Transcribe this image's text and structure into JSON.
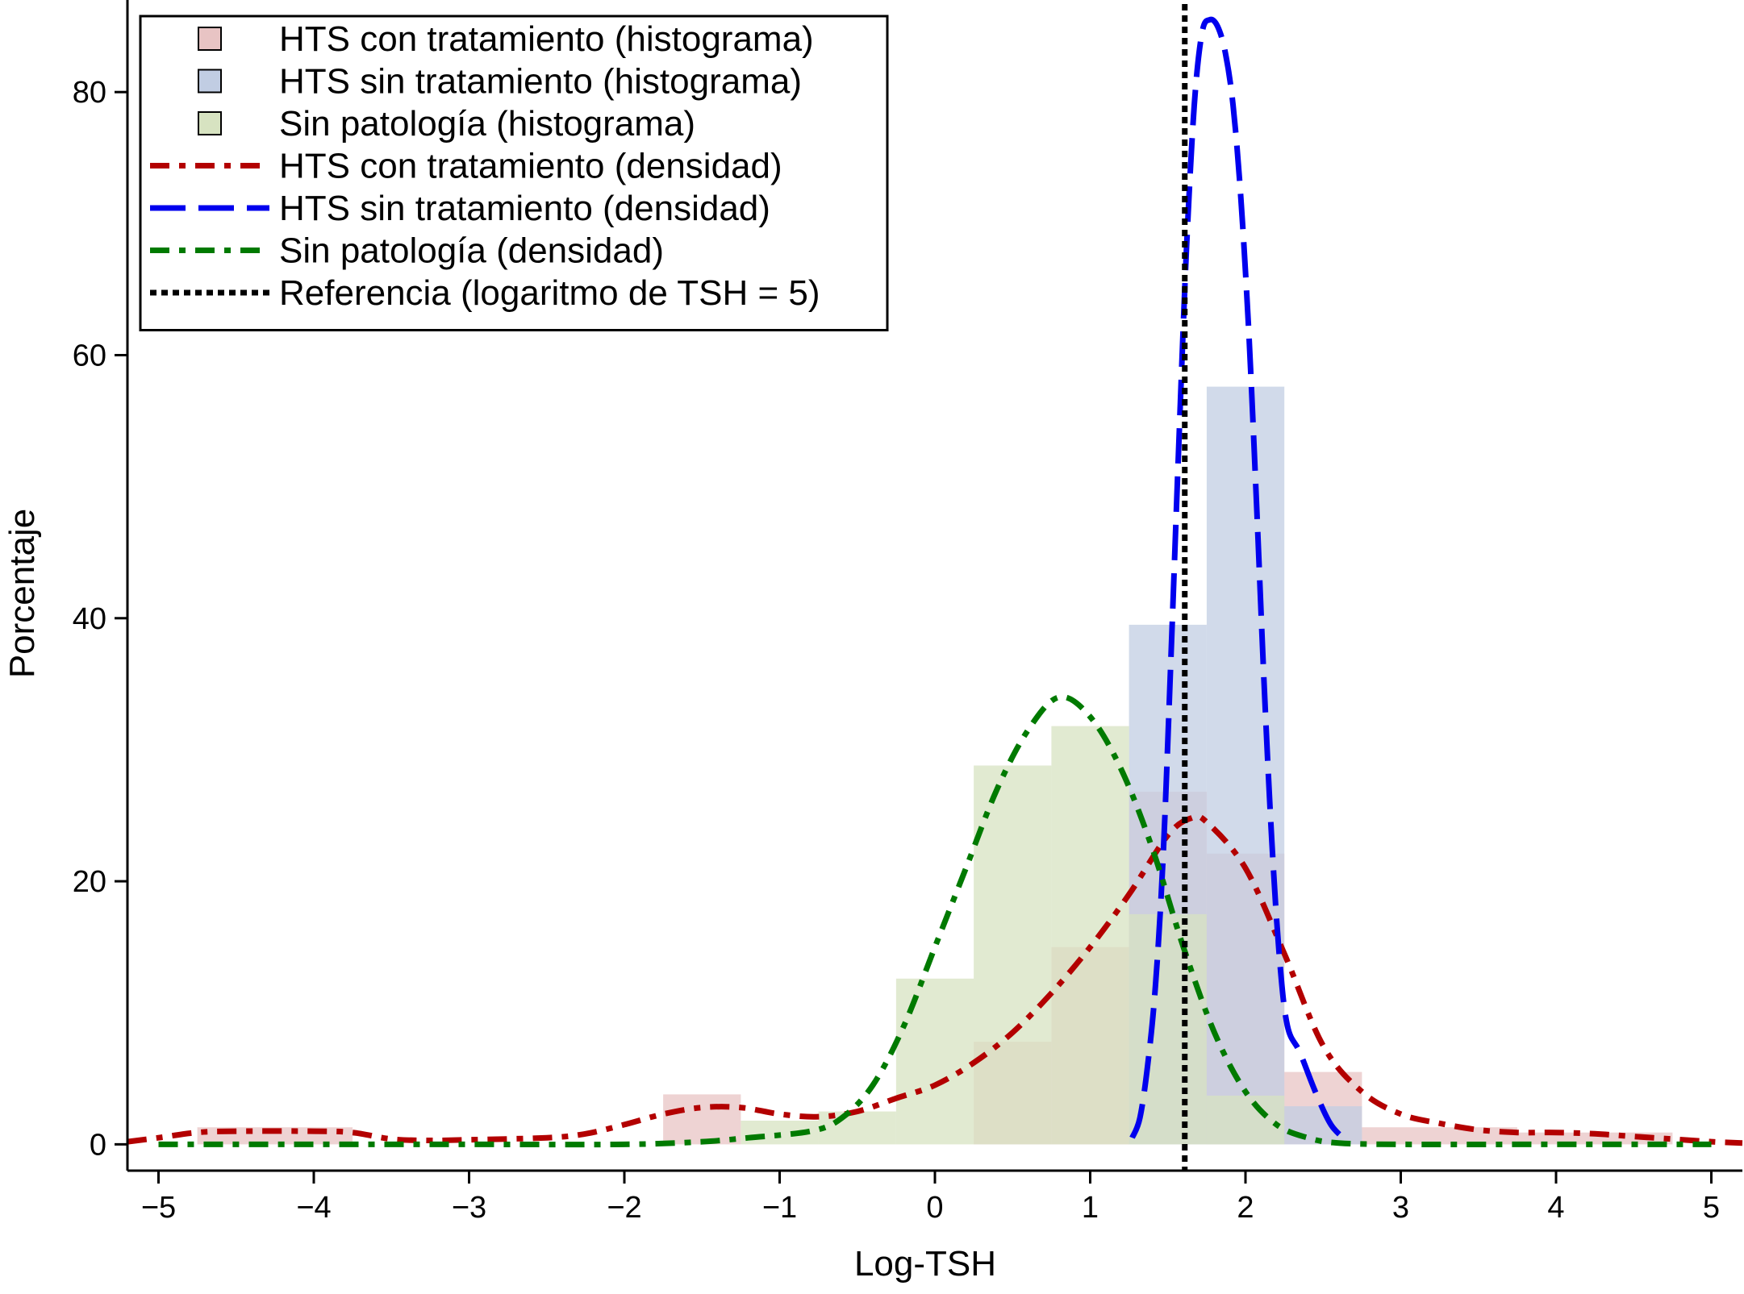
{
  "chart_data": {
    "type": "histogram",
    "title": "",
    "xlabel": "Log-TSH",
    "ylabel": "Porcentaje",
    "xlim": [
      -5.2,
      5.2
    ],
    "ylim": [
      -2,
      87
    ],
    "x_ticks": [
      -5,
      -4,
      -3,
      -2,
      -1,
      0,
      1,
      2,
      3,
      4,
      5
    ],
    "x_tick_labels": [
      "−5",
      "−4",
      "−3",
      "−2",
      "−1",
      "0",
      "1",
      "2",
      "3",
      "4",
      "5"
    ],
    "y_ticks": [
      0,
      20,
      40,
      60,
      80
    ],
    "y_tick_labels": [
      "0",
      "20",
      "40",
      "60",
      "80"
    ],
    "grid": false,
    "legend_position": "top-left",
    "reference_line": {
      "name": "Referencia (logaritmo de TSH = 5)",
      "x": 1.609,
      "color": "#000000",
      "dash": "dotted"
    },
    "histograms": [
      {
        "name": "HTS con tratamiento (histograma)",
        "color": "#e8c4c4",
        "bins": [
          {
            "x0": -4.75,
            "x1": -3.75,
            "y": 1.3
          },
          {
            "x0": -1.75,
            "x1": -1.25,
            "y": 3.8
          },
          {
            "x0": 0.25,
            "x1": 0.75,
            "y": 7.8
          },
          {
            "x0": 0.75,
            "x1": 1.25,
            "y": 15.0
          },
          {
            "x0": 1.25,
            "x1": 1.75,
            "y": 26.8
          },
          {
            "x0": 1.75,
            "x1": 2.25,
            "y": 22.1
          },
          {
            "x0": 2.25,
            "x1": 2.75,
            "y": 5.5
          },
          {
            "x0": 2.75,
            "x1": 3.75,
            "y": 1.3
          },
          {
            "x0": 3.75,
            "x1": 4.75,
            "y": 0.9
          }
        ]
      },
      {
        "name": "HTS sin tratamiento (histograma)",
        "color": "#c1cde3",
        "bins": [
          {
            "x0": 1.25,
            "x1": 1.75,
            "y": 39.5
          },
          {
            "x0": 1.75,
            "x1": 2.25,
            "y": 57.6
          },
          {
            "x0": 2.25,
            "x1": 2.75,
            "y": 2.9
          }
        ]
      },
      {
        "name": "Sin patología (histograma)",
        "color": "#d7e3c1",
        "bins": [
          {
            "x0": -1.25,
            "x1": -0.75,
            "y": 1.8
          },
          {
            "x0": -0.75,
            "x1": -0.25,
            "y": 2.5
          },
          {
            "x0": -0.25,
            "x1": 0.25,
            "y": 12.6
          },
          {
            "x0": 0.25,
            "x1": 0.75,
            "y": 28.8
          },
          {
            "x0": 0.75,
            "x1": 1.25,
            "y": 31.8
          },
          {
            "x0": 1.25,
            "x1": 1.75,
            "y": 17.5
          },
          {
            "x0": 1.75,
            "x1": 2.25,
            "y": 3.7
          }
        ]
      }
    ],
    "densities": [
      {
        "name": "HTS con tratamiento (densidad)",
        "color": "#b30000",
        "dash": "dash-dot",
        "points": [
          [
            -5.2,
            0.2
          ],
          [
            -5,
            0.5
          ],
          [
            -4.75,
            0.9
          ],
          [
            -4.5,
            1.0
          ],
          [
            -4.0,
            1.0
          ],
          [
            -3.75,
            0.9
          ],
          [
            -3.5,
            0.4
          ],
          [
            -3.25,
            0.3
          ],
          [
            -3,
            0.35
          ],
          [
            -2.5,
            0.5
          ],
          [
            -2.25,
            0.8
          ],
          [
            -2,
            1.5
          ],
          [
            -1.75,
            2.3
          ],
          [
            -1.5,
            2.8
          ],
          [
            -1.25,
            2.8
          ],
          [
            -1,
            2.3
          ],
          [
            -0.75,
            2.1
          ],
          [
            -0.5,
            2.5
          ],
          [
            -0.25,
            3.5
          ],
          [
            0,
            4.5
          ],
          [
            0.25,
            6.2
          ],
          [
            0.5,
            8.5
          ],
          [
            0.75,
            11.5
          ],
          [
            1.0,
            15.0
          ],
          [
            1.25,
            19.0
          ],
          [
            1.5,
            23.5
          ],
          [
            1.65,
            24.8
          ],
          [
            1.75,
            24.5
          ],
          [
            2.0,
            21.0
          ],
          [
            2.25,
            14.5
          ],
          [
            2.5,
            7.5
          ],
          [
            2.75,
            4.0
          ],
          [
            3.0,
            2.3
          ],
          [
            3.25,
            1.6
          ],
          [
            3.5,
            1.1
          ],
          [
            3.75,
            0.9
          ],
          [
            4.0,
            0.9
          ],
          [
            4.25,
            0.8
          ],
          [
            4.5,
            0.6
          ],
          [
            4.75,
            0.4
          ],
          [
            5,
            0.2
          ],
          [
            5.2,
            0.1
          ]
        ]
      },
      {
        "name": "HTS sin tratamiento (densidad)",
        "color": "#0000ee",
        "dash": "long-dash",
        "points": [
          [
            1.27,
            0.5
          ],
          [
            1.32,
            2
          ],
          [
            1.37,
            6
          ],
          [
            1.42,
            12
          ],
          [
            1.47,
            22
          ],
          [
            1.52,
            37
          ],
          [
            1.57,
            53
          ],
          [
            1.62,
            68
          ],
          [
            1.67,
            79
          ],
          [
            1.72,
            84.5
          ],
          [
            1.77,
            85.5
          ],
          [
            1.82,
            85
          ],
          [
            1.87,
            83
          ],
          [
            1.92,
            79
          ],
          [
            1.97,
            72
          ],
          [
            2.02,
            62
          ],
          [
            2.07,
            49
          ],
          [
            2.12,
            35
          ],
          [
            2.17,
            23
          ],
          [
            2.22,
            14
          ],
          [
            2.27,
            9
          ],
          [
            2.35,
            7
          ],
          [
            2.45,
            4
          ],
          [
            2.55,
            1.5
          ],
          [
            2.65,
            0.3
          ]
        ]
      },
      {
        "name": "Sin patología (densidad)",
        "color": "#007a00",
        "dash": "dash-dot",
        "points": [
          [
            -5,
            0
          ],
          [
            -4,
            0
          ],
          [
            -3,
            0
          ],
          [
            -2,
            0
          ],
          [
            -1.5,
            0.2
          ],
          [
            -1.2,
            0.5
          ],
          [
            -0.8,
            1.0
          ],
          [
            -0.6,
            2.0
          ],
          [
            -0.4,
            4.5
          ],
          [
            -0.2,
            9.0
          ],
          [
            0,
            15.0
          ],
          [
            0.2,
            21.0
          ],
          [
            0.4,
            27.0
          ],
          [
            0.6,
            31.5
          ],
          [
            0.8,
            34.0
          ],
          [
            1.0,
            32.5
          ],
          [
            1.2,
            28.5
          ],
          [
            1.4,
            22.5
          ],
          [
            1.6,
            15.0
          ],
          [
            1.8,
            8.5
          ],
          [
            2.0,
            4.0
          ],
          [
            2.2,
            1.5
          ],
          [
            2.4,
            0.5
          ],
          [
            2.6,
            0.1
          ],
          [
            3,
            0
          ],
          [
            4,
            0
          ],
          [
            5,
            0
          ]
        ]
      }
    ],
    "legend": [
      {
        "label": "HTS con tratamiento (histograma)",
        "kind": "swatch",
        "color": "#e8c4c4"
      },
      {
        "label": "HTS sin tratamiento (histograma)",
        "kind": "swatch",
        "color": "#c1cde3"
      },
      {
        "label": "Sin patología (histograma)",
        "kind": "swatch",
        "color": "#d7e3c1"
      },
      {
        "label": "HTS con tratamiento (densidad)",
        "kind": "line",
        "color": "#b30000",
        "dash": "dash-dot"
      },
      {
        "label": "HTS sin tratamiento (densidad)",
        "kind": "line",
        "color": "#0000ee",
        "dash": "long-dash"
      },
      {
        "label": "Sin patología (densidad)",
        "kind": "line",
        "color": "#007a00",
        "dash": "dash-dot"
      },
      {
        "label": "Referencia (logaritmo de TSH = 5)",
        "kind": "line",
        "color": "#000000",
        "dash": "dotted"
      }
    ]
  }
}
